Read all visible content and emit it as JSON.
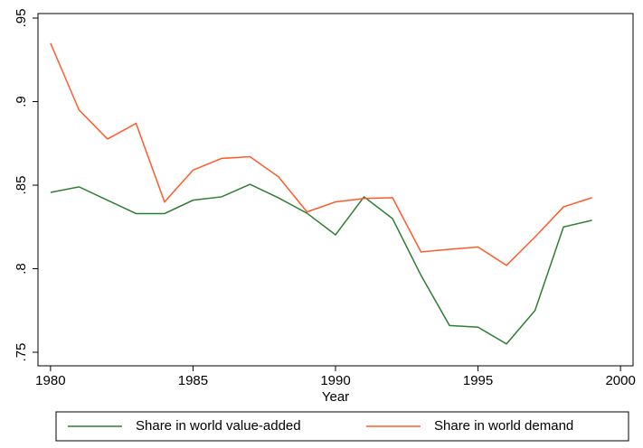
{
  "chart_data": {
    "type": "line",
    "x_label": "Year",
    "x": [
      1980,
      1981,
      1982,
      1983,
      1984,
      1985,
      1986,
      1987,
      1988,
      1989,
      1990,
      1991,
      1992,
      1993,
      1994,
      1995,
      1996,
      1997,
      1998,
      1999
    ],
    "series": [
      {
        "name": "Share in world value-added",
        "color": "#2e7d32",
        "values": [
          0.8457,
          0.849,
          0.841,
          0.833,
          0.833,
          0.841,
          0.843,
          0.8505,
          0.8424,
          0.8332,
          0.8203,
          0.843,
          0.83,
          0.796,
          0.766,
          0.765,
          0.755,
          0.775,
          0.825,
          0.829
        ]
      },
      {
        "name": "Share in world demand",
        "color": "#ff5a2a",
        "values": [
          0.935,
          0.895,
          0.8776,
          0.887,
          0.84,
          0.859,
          0.866,
          0.867,
          0.855,
          0.834,
          0.84,
          0.842,
          0.8425,
          0.81,
          0.8116,
          0.813,
          0.802,
          0.819,
          0.837,
          0.8425
        ]
      }
    ],
    "xlim": [
      1979.56,
      2000.44
    ],
    "xticks": [
      1980,
      1985,
      1990,
      1995,
      2000
    ],
    "ylim": [
      0.7419,
      0.9527
    ],
    "yticks": [
      {
        "value": 0.75,
        "label": ".75"
      },
      {
        "value": 0.8,
        "label": ".8"
      },
      {
        "value": 0.85,
        "label": ".85"
      },
      {
        "value": 0.9,
        "label": ".9"
      },
      {
        "value": 0.95,
        "label": ".95"
      }
    ],
    "grid": false,
    "legend": "bottom"
  }
}
